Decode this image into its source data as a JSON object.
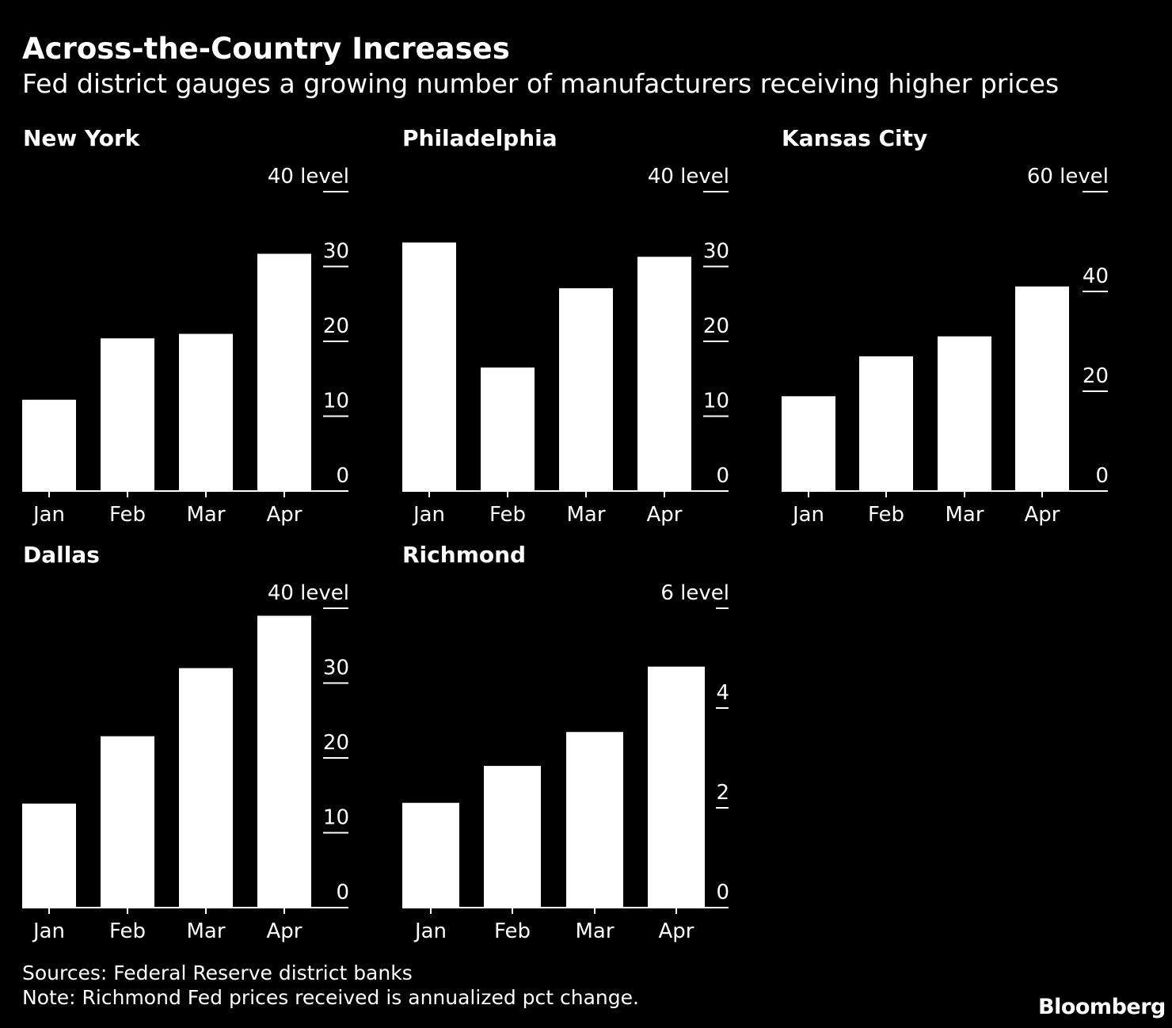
{
  "title": "Across-the-Country Increases",
  "subtitle": "Fed district gauges a growing number of manufacturers receiving higher prices",
  "footer": {
    "sources": "Sources: Federal Reserve district banks",
    "note": "Note: Richmond Fed prices received is annualized pct change.",
    "brand": "Bloomberg"
  },
  "colors": {
    "background": "#000000",
    "bars": "#ffffff",
    "text": "#ffffff"
  },
  "chart_data": [
    {
      "type": "bar",
      "title": "New York",
      "unit": "level",
      "categories": [
        "Jan",
        "Feb",
        "Mar",
        "Apr"
      ],
      "values": [
        12.2,
        20.4,
        21.0,
        31.7
      ],
      "ylim": [
        0,
        40
      ],
      "yticks": [
        0,
        10,
        20,
        30,
        40
      ]
    },
    {
      "type": "bar",
      "title": "Philadelphia",
      "unit": "level",
      "categories": [
        "Jan",
        "Feb",
        "Mar",
        "Apr"
      ],
      "values": [
        33.2,
        16.5,
        27.1,
        31.3
      ],
      "ylim": [
        0,
        40
      ],
      "yticks": [
        0,
        10,
        20,
        30,
        40
      ]
    },
    {
      "type": "bar",
      "title": "Kansas City",
      "unit": "level",
      "categories": [
        "Jan",
        "Feb",
        "Mar",
        "Apr"
      ],
      "values": [
        19,
        27,
        31,
        41
      ],
      "ylim": [
        0,
        60
      ],
      "yticks": [
        0,
        20,
        40,
        60
      ]
    },
    {
      "type": "bar",
      "title": "Dallas",
      "unit": "level",
      "categories": [
        "Jan",
        "Feb",
        "Mar",
        "Apr"
      ],
      "values": [
        13.9,
        22.9,
        32.0,
        39.0
      ],
      "ylim": [
        0,
        40
      ],
      "yticks": [
        0,
        10,
        20,
        30,
        40
      ]
    },
    {
      "type": "bar",
      "title": "Richmond",
      "unit": "level",
      "categories": [
        "Jan",
        "Feb",
        "Mar",
        "Apr"
      ],
      "values": [
        2.1,
        2.84,
        3.52,
        4.83
      ],
      "ylim": [
        0,
        6
      ],
      "yticks": [
        0,
        2,
        4,
        6
      ]
    }
  ]
}
